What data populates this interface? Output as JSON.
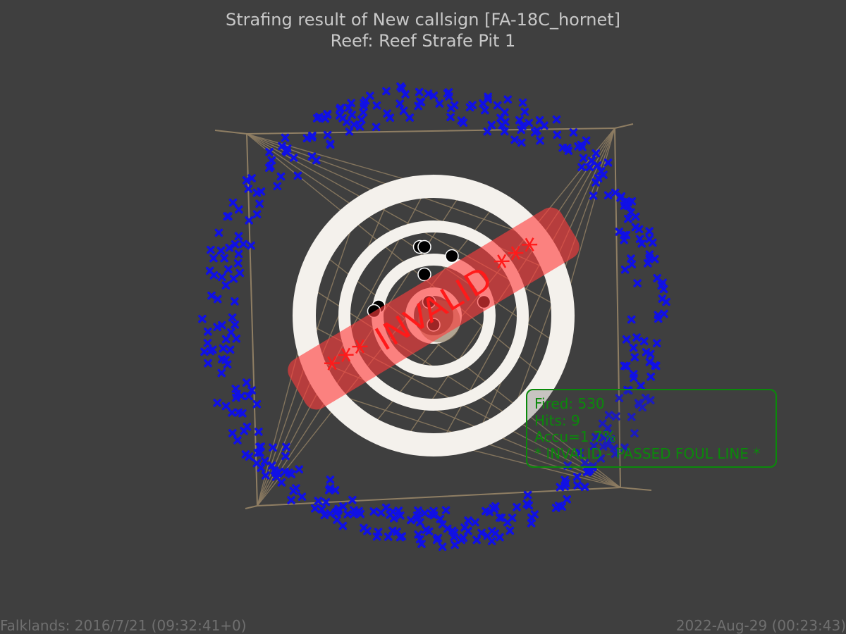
{
  "header": {
    "title_line_1": "Strafing result of New callsign [FA-18C_hornet]",
    "title_line_2": "Reef: Reef Strafe Pit 1"
  },
  "footer": {
    "left": "Falklands: 2016/7/21 (09:32:41+0)",
    "right": "2022-Aug-29 (00:23:43)"
  },
  "stats": {
    "fired": "Fired: 530",
    "hits": "Hits: 9",
    "accuracy": "Accu=1.7%",
    "status": "* INVALID - PASSED FOUL LINE *"
  },
  "overlay": {
    "stamp_text": "*** INVALID ***"
  },
  "colors": {
    "background": "#3f3f3f",
    "miss_marker": "#1010e6",
    "hit_marker": "#000000",
    "stamp": "#ff3b3b",
    "stats_text": "#0a8a0a",
    "target_rings": "#f4f1ec",
    "target_frame": "#8f7e63"
  },
  "chart_data": {
    "type": "scatter",
    "series": [
      {
        "name": "",
        "marker": "x-icon",
        "count": 521,
        "points": [
          [
            -0.5,
            -4.7
          ],
          [
            -0.9,
            -4.6
          ],
          [
            0.0,
            -4.7
          ],
          [
            0.4,
            -4.6
          ],
          [
            -1.4,
            -4.5
          ],
          [
            -1.9,
            -4.4
          ],
          [
            1.0,
            -4.5
          ],
          [
            1.5,
            -4.4
          ],
          [
            -2.6,
            -4.1
          ],
          [
            -2.2,
            -4.3
          ],
          [
            2.2,
            -4.2
          ],
          [
            1.9,
            -4.4
          ],
          [
            -3.0,
            -3.8
          ],
          [
            -3.4,
            -3.5
          ],
          [
            2.7,
            -4.0
          ],
          [
            3.1,
            -3.7
          ],
          [
            -3.7,
            -3.2
          ],
          [
            -4.0,
            -2.8
          ],
          [
            3.5,
            -3.4
          ],
          [
            3.8,
            -3.0
          ],
          [
            -4.3,
            -2.3
          ],
          [
            -4.4,
            -1.8
          ],
          [
            4.1,
            -2.6
          ],
          [
            4.3,
            -2.1
          ],
          [
            -4.6,
            -1.2
          ],
          [
            -4.7,
            -0.6
          ],
          [
            4.5,
            -1.5
          ],
          [
            4.6,
            -0.9
          ],
          [
            -4.8,
            0.0
          ],
          [
            -4.7,
            0.6
          ],
          [
            4.7,
            -0.3
          ],
          [
            4.7,
            0.3
          ],
          [
            -4.6,
            1.2
          ],
          [
            -4.5,
            1.7
          ],
          [
            4.6,
            0.9
          ],
          [
            4.5,
            1.5
          ],
          [
            -4.3,
            2.2
          ],
          [
            -4.1,
            2.7
          ],
          [
            4.3,
            2.1
          ],
          [
            4.1,
            2.6
          ],
          [
            -3.8,
            3.1
          ],
          [
            -3.5,
            3.4
          ],
          [
            3.8,
            3.0
          ],
          [
            3.5,
            3.4
          ],
          [
            -3.1,
            3.7
          ],
          [
            -2.7,
            4.0
          ],
          [
            3.1,
            3.7
          ],
          [
            2.7,
            4.0
          ],
          [
            -2.2,
            4.2
          ],
          [
            -1.7,
            4.4
          ],
          [
            2.2,
            4.3
          ],
          [
            1.7,
            4.4
          ],
          [
            -1.1,
            4.6
          ],
          [
            -0.6,
            4.7
          ],
          [
            1.1,
            4.6
          ],
          [
            0.5,
            4.7
          ],
          [
            0.0,
            4.8
          ],
          [
            -0.3,
            4.7
          ],
          [
            0.3,
            4.7
          ],
          [
            -1.4,
            4.5
          ],
          [
            1.4,
            4.5
          ],
          [
            -2.5,
            4.1
          ],
          [
            2.5,
            4.1
          ],
          [
            -3.9,
            2.9
          ],
          [
            3.9,
            2.9
          ],
          [
            -4.6,
            -1.4
          ],
          [
            4.6,
            -1.4
          ],
          [
            -4.7,
            0.9
          ],
          [
            4.7,
            0.9
          ],
          [
            -2.0,
            -4.3
          ],
          [
            2.0,
            -4.3
          ],
          [
            -3.3,
            -3.6
          ],
          [
            3.3,
            -3.6
          ],
          [
            -4.2,
            -2.5
          ],
          [
            4.2,
            -2.5
          ],
          [
            -4.4,
            1.9
          ],
          [
            4.4,
            1.9
          ],
          [
            -3.6,
            3.3
          ],
          [
            3.6,
            3.3
          ],
          [
            -0.8,
            4.6
          ],
          [
            0.8,
            4.6
          ]
        ]
      },
      {
        "name": "",
        "marker": "dot",
        "count": 9,
        "points": [
          [
            -0.3,
            -1.5
          ],
          [
            -0.2,
            -1.5
          ],
          [
            0.4,
            -1.3
          ],
          [
            -0.2,
            -0.9
          ],
          [
            -1.2,
            -0.2
          ],
          [
            -1.3,
            -0.1
          ],
          [
            1.1,
            -0.3
          ],
          [
            -0.1,
            -0.3
          ],
          [
            0.0,
            0.2
          ]
        ]
      }
    ]
  }
}
